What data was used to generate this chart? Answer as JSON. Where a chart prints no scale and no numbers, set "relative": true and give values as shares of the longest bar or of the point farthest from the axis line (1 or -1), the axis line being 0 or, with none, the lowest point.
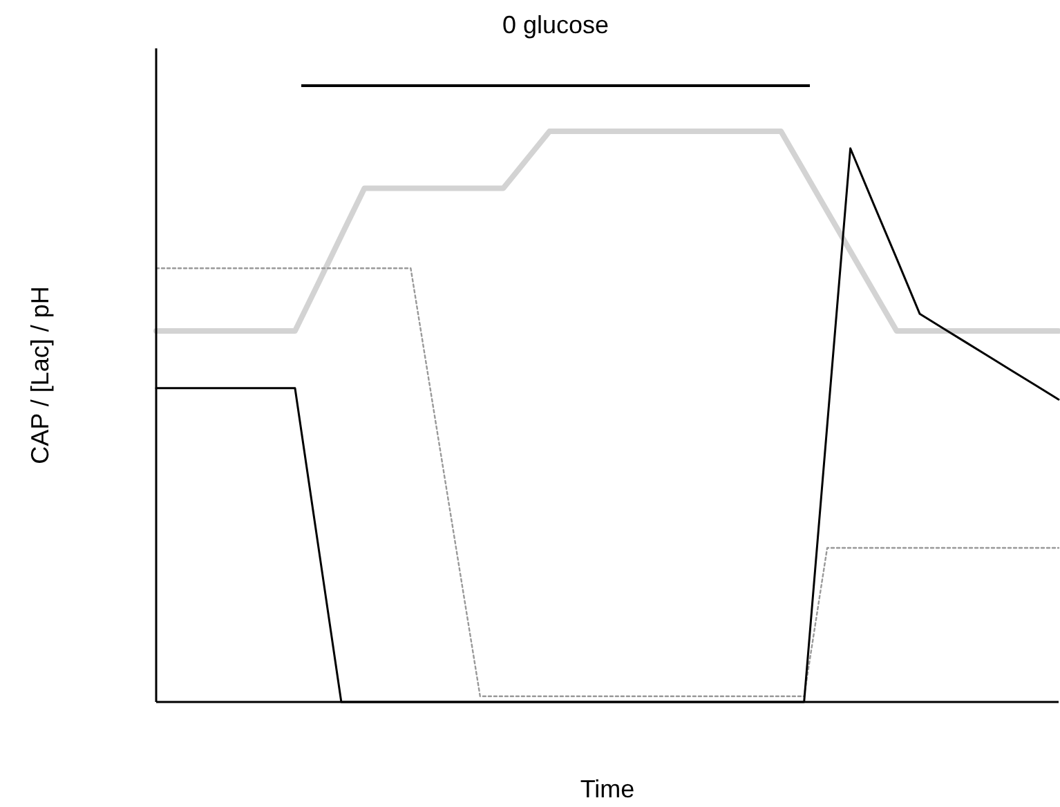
{
  "chart_data": {
    "type": "line",
    "relative": true,
    "xlabel": "Time",
    "ylabel": "CAP / [Lac] / pH",
    "annotations": [
      "0 glucose"
    ],
    "categories": [
      null,
      null,
      null,
      null,
      null,
      null,
      null,
      null,
      null,
      null,
      null,
      null,
      null,
      null,
      null,
      null,
      null,
      null,
      null,
      null,
      null,
      null,
      null,
      null,
      null,
      null,
      null,
      null,
      null,
      null,
      null,
      null,
      null,
      null,
      null,
      null,
      null,
      null,
      null,
      null
    ],
    "series": [
      {
        "color": "#d3d3d3",
        "line_style": "solid",
        "values": [
          0.65,
          0.65,
          0.65,
          0.65,
          0.65,
          0.65,
          0.65,
          0.733,
          0.817,
          0.9,
          0.9,
          0.9,
          0.9,
          0.9,
          0.9,
          0.9,
          0.95,
          1,
          1,
          1,
          1,
          1,
          1,
          1,
          1,
          1,
          1,
          1,
          0.93,
          0.86,
          0.79,
          0.72,
          0.65,
          0.65,
          0.65,
          0.65,
          0.65,
          0.65,
          0.65,
          0.65
        ]
      },
      {
        "color": "#999999",
        "line_style": "dotted",
        "values": [
          0.76,
          0.76,
          0.76,
          0.76,
          0.76,
          0.76,
          0.76,
          0.76,
          0.76,
          0.76,
          0.76,
          0.76,
          0.51,
          0.26,
          0.01,
          0.01,
          0.01,
          0.01,
          0.01,
          0.01,
          0.01,
          0.01,
          0.01,
          0.01,
          0.01,
          0.01,
          0.01,
          0.01,
          0.01,
          0.27,
          0.27,
          0.27,
          0.27,
          0.27,
          0.27,
          0.27,
          0.27,
          0.27,
          0.27,
          0.27
        ]
      },
      {
        "color": "#000000",
        "line_style": "solid",
        "values": [
          0.55,
          0.55,
          0.55,
          0.55,
          0.55,
          0.55,
          0.55,
          0.275,
          0,
          0,
          0,
          0,
          0,
          0,
          0,
          0,
          0,
          0,
          0,
          0,
          0,
          0,
          0,
          0,
          0,
          0,
          0,
          0,
          0,
          0.485,
          0.97,
          0.873,
          0.777,
          0.68,
          0.655,
          0.63,
          0.605,
          0.58,
          0.555,
          0.53
        ]
      }
    ]
  }
}
